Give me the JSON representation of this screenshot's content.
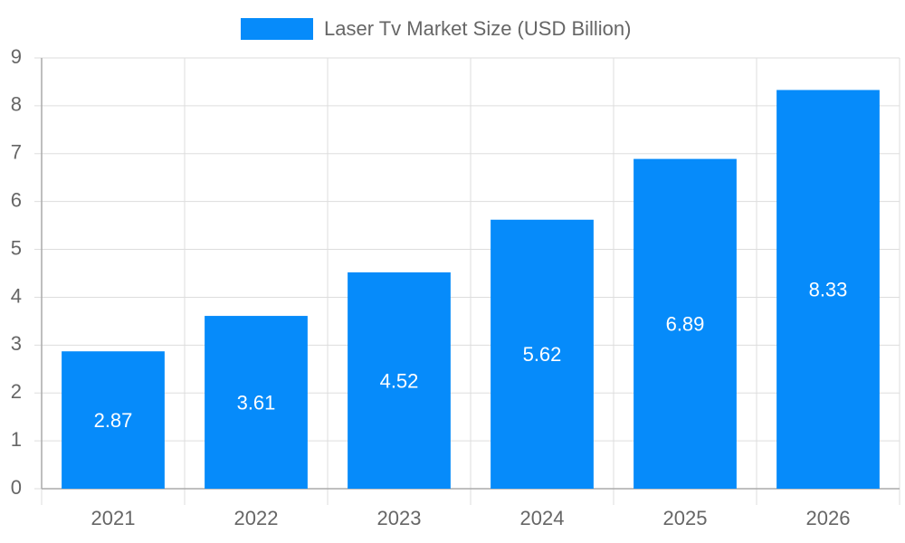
{
  "chart_data": {
    "type": "bar",
    "categories": [
      "2021",
      "2022",
      "2023",
      "2024",
      "2025",
      "2026"
    ],
    "series": [
      {
        "name": "Laser Tv Market Size (USD Billion)",
        "color": "#068bfa",
        "values": [
          2.87,
          3.61,
          4.52,
          5.62,
          6.89,
          8.33
        ]
      }
    ],
    "ylim": [
      0,
      9
    ],
    "yticks": [
      0,
      1,
      2,
      3,
      4,
      5,
      6,
      7,
      8,
      9
    ],
    "grid": true,
    "legend": "top"
  }
}
